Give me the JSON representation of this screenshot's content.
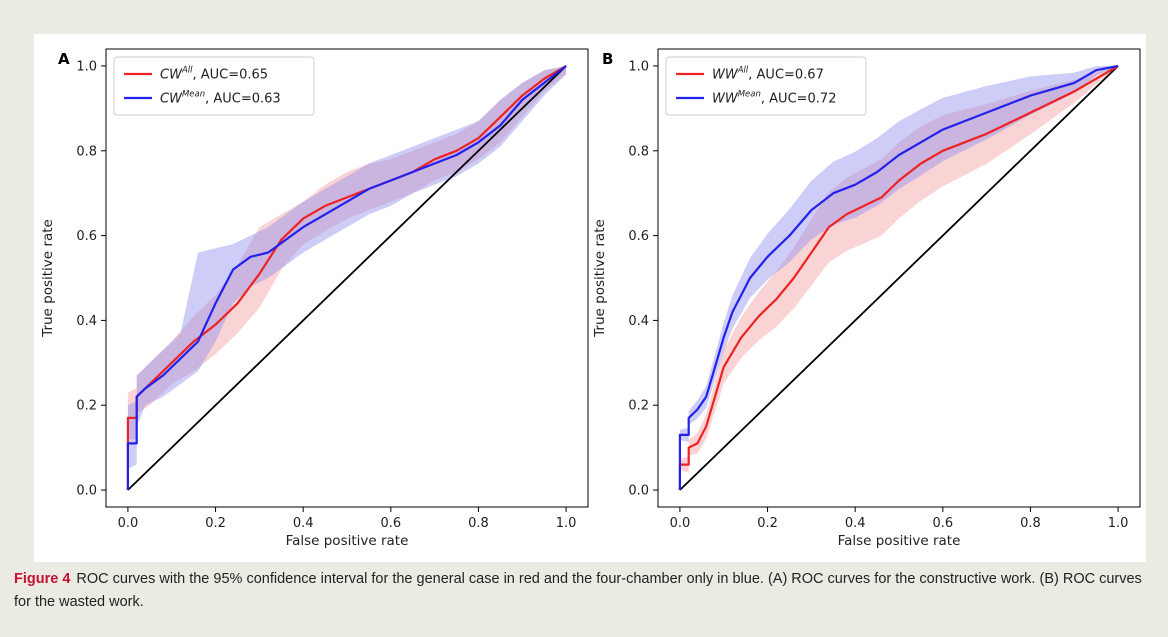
{
  "caption": {
    "label": "Figure 4",
    "text": "ROC curves with the 95% confidence interval for the general case in red and the four-chamber only in blue. (A) ROC curves for the constructive work. (B) ROC curves for the wasted work."
  },
  "colors": {
    "red": "#ee2222",
    "blue": "#2222ee",
    "red_band": "#f4a0a0",
    "blue_band": "#9090f0",
    "diagonal": "#000000",
    "caption_label": "#c8102e"
  },
  "chart_data": [
    {
      "type": "line",
      "panel": "A",
      "xlabel": "False positive rate",
      "ylabel": "True positive rate",
      "xlim": [
        -0.05,
        1.05
      ],
      "ylim": [
        -0.04,
        1.04
      ],
      "xticks": [
        "0.0",
        "0.2",
        "0.4",
        "0.6",
        "0.8",
        "1.0"
      ],
      "yticks": [
        "0.0",
        "0.2",
        "0.4",
        "0.6",
        "0.8",
        "1.0"
      ],
      "grid": false,
      "legend_position": "top-left",
      "diagonal": true,
      "series": [
        {
          "legend_base": "CW",
          "legend_sup": "All",
          "legend_suffix": ", AUC=0.65",
          "color": "red",
          "x": [
            0,
            0,
            0.02,
            0.02,
            0.05,
            0.1,
            0.15,
            0.2,
            0.25,
            0.3,
            0.35,
            0.4,
            0.45,
            0.5,
            0.55,
            0.6,
            0.65,
            0.7,
            0.75,
            0.8,
            0.85,
            0.9,
            0.95,
            1.0
          ],
          "y": [
            0,
            0.17,
            0.17,
            0.22,
            0.25,
            0.3,
            0.35,
            0.39,
            0.44,
            0.51,
            0.59,
            0.64,
            0.67,
            0.69,
            0.71,
            0.73,
            0.75,
            0.78,
            0.8,
            0.83,
            0.88,
            0.93,
            0.97,
            1.0
          ],
          "lower": [
            0,
            0.12,
            0.12,
            0.18,
            0.2,
            0.25,
            0.28,
            0.32,
            0.37,
            0.43,
            0.52,
            0.58,
            0.61,
            0.64,
            0.66,
            0.68,
            0.7,
            0.73,
            0.75,
            0.78,
            0.82,
            0.88,
            0.94,
            0.98
          ],
          "upper": [
            0.05,
            0.23,
            0.24,
            0.27,
            0.3,
            0.35,
            0.41,
            0.46,
            0.53,
            0.62,
            0.65,
            0.68,
            0.72,
            0.75,
            0.77,
            0.78,
            0.8,
            0.82,
            0.84,
            0.87,
            0.92,
            0.96,
            0.99,
            1.0
          ]
        },
        {
          "legend_base": "CW",
          "legend_sup": "Mean",
          "legend_suffix": ", AUC=0.63",
          "color": "blue",
          "x": [
            0,
            0,
            0.02,
            0.02,
            0.04,
            0.08,
            0.12,
            0.16,
            0.2,
            0.24,
            0.28,
            0.32,
            0.36,
            0.4,
            0.45,
            0.5,
            0.55,
            0.6,
            0.65,
            0.7,
            0.75,
            0.8,
            0.85,
            0.9,
            0.95,
            1.0
          ],
          "y": [
            0,
            0.11,
            0.11,
            0.22,
            0.24,
            0.27,
            0.31,
            0.35,
            0.44,
            0.52,
            0.55,
            0.56,
            0.59,
            0.62,
            0.65,
            0.68,
            0.71,
            0.73,
            0.75,
            0.77,
            0.79,
            0.82,
            0.86,
            0.92,
            0.96,
            1.0
          ],
          "lower": [
            0,
            0.05,
            0.06,
            0.15,
            0.2,
            0.22,
            0.25,
            0.28,
            0.35,
            0.44,
            0.48,
            0.5,
            0.53,
            0.56,
            0.59,
            0.62,
            0.65,
            0.67,
            0.7,
            0.72,
            0.74,
            0.77,
            0.81,
            0.87,
            0.93,
            0.98
          ],
          "upper": [
            0.04,
            0.2,
            0.21,
            0.27,
            0.29,
            0.33,
            0.37,
            0.56,
            0.57,
            0.58,
            0.6,
            0.62,
            0.65,
            0.68,
            0.71,
            0.74,
            0.77,
            0.79,
            0.81,
            0.83,
            0.85,
            0.87,
            0.92,
            0.96,
            0.99,
            1.0
          ]
        }
      ]
    },
    {
      "type": "line",
      "panel": "B",
      "xlabel": "False positive rate",
      "ylabel": "True positive rate",
      "xlim": [
        -0.05,
        1.05
      ],
      "ylim": [
        -0.04,
        1.04
      ],
      "xticks": [
        "0.0",
        "0.2",
        "0.4",
        "0.6",
        "0.8",
        "1.0"
      ],
      "yticks": [
        "0.0",
        "0.2",
        "0.4",
        "0.6",
        "0.8",
        "1.0"
      ],
      "grid": false,
      "legend_position": "top-left",
      "diagonal": true,
      "series": [
        {
          "legend_base": "WW",
          "legend_sup": "All",
          "legend_suffix": ", AUC=0.67",
          "color": "red",
          "x": [
            0,
            0,
            0.02,
            0.02,
            0.04,
            0.06,
            0.08,
            0.1,
            0.14,
            0.18,
            0.22,
            0.26,
            0.3,
            0.34,
            0.38,
            0.42,
            0.46,
            0.5,
            0.55,
            0.6,
            0.7,
            0.8,
            0.9,
            1.0
          ],
          "y": [
            0,
            0.06,
            0.06,
            0.1,
            0.11,
            0.15,
            0.22,
            0.29,
            0.36,
            0.41,
            0.45,
            0.5,
            0.56,
            0.62,
            0.65,
            0.67,
            0.69,
            0.73,
            0.77,
            0.8,
            0.84,
            0.89,
            0.94,
            1.0
          ]
        },
        {
          "legend_base": "WW",
          "legend_sup": "Mean",
          "legend_suffix": ", AUC=0.72",
          "color": "blue",
          "x": [
            0,
            0,
            0.02,
            0.02,
            0.04,
            0.06,
            0.08,
            0.1,
            0.12,
            0.14,
            0.16,
            0.2,
            0.25,
            0.3,
            0.35,
            0.4,
            0.45,
            0.5,
            0.55,
            0.6,
            0.7,
            0.8,
            0.9,
            0.95,
            1.0
          ],
          "y": [
            0,
            0.13,
            0.13,
            0.17,
            0.19,
            0.22,
            0.29,
            0.36,
            0.42,
            0.46,
            0.5,
            0.55,
            0.6,
            0.66,
            0.7,
            0.72,
            0.75,
            0.79,
            0.82,
            0.85,
            0.89,
            0.93,
            0.96,
            0.99,
            1.0
          ]
        }
      ]
    }
  ]
}
